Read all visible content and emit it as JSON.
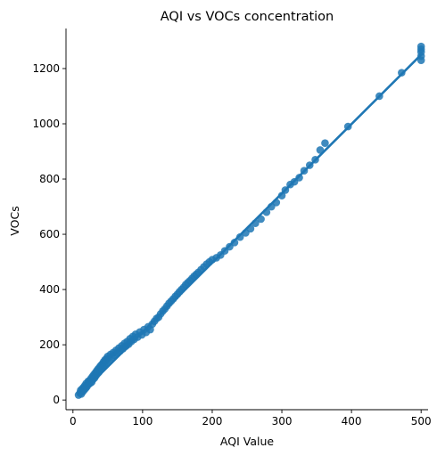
{
  "chart_data": {
    "type": "scatter",
    "title": "AQI vs VOCs concentration",
    "xlabel": "AQI Value",
    "ylabel": "VOCs",
    "xlim": [
      -10,
      510
    ],
    "ylim": [
      -35,
      1345
    ],
    "xticks": [
      0,
      100,
      200,
      300,
      400,
      500
    ],
    "yticks": [
      0,
      200,
      400,
      600,
      800,
      1000,
      1200
    ],
    "grid": false,
    "legend": "none",
    "marker_color": "#1f77b4",
    "regression_line": {
      "x": [
        8,
        500
      ],
      "y": [
        15,
        1250
      ]
    },
    "points": [
      [
        8,
        18
      ],
      [
        10,
        25
      ],
      [
        11,
        35
      ],
      [
        12,
        22
      ],
      [
        13,
        40
      ],
      [
        14,
        30
      ],
      [
        15,
        45
      ],
      [
        16,
        36
      ],
      [
        17,
        52
      ],
      [
        18,
        42
      ],
      [
        19,
        60
      ],
      [
        20,
        48
      ],
      [
        21,
        55
      ],
      [
        22,
        68
      ],
      [
        23,
        58
      ],
      [
        24,
        70
      ],
      [
        25,
        62
      ],
      [
        26,
        78
      ],
      [
        27,
        65
      ],
      [
        28,
        85
      ],
      [
        29,
        75
      ],
      [
        30,
        92
      ],
      [
        31,
        80
      ],
      [
        32,
        98
      ],
      [
        33,
        88
      ],
      [
        34,
        105
      ],
      [
        35,
        95
      ],
      [
        36,
        112
      ],
      [
        37,
        100
      ],
      [
        38,
        118
      ],
      [
        39,
        108
      ],
      [
        40,
        125
      ],
      [
        41,
        115
      ],
      [
        42,
        130
      ],
      [
        43,
        120
      ],
      [
        44,
        138
      ],
      [
        45,
        128
      ],
      [
        46,
        145
      ],
      [
        47,
        135
      ],
      [
        48,
        150
      ],
      [
        49,
        142
      ],
      [
        50,
        158
      ],
      [
        52,
        148
      ],
      [
        54,
        165
      ],
      [
        56,
        155
      ],
      [
        58,
        172
      ],
      [
        60,
        162
      ],
      [
        62,
        180
      ],
      [
        64,
        170
      ],
      [
        66,
        188
      ],
      [
        68,
        178
      ],
      [
        70,
        196
      ],
      [
        72,
        186
      ],
      [
        74,
        205
      ],
      [
        76,
        195
      ],
      [
        78,
        212
      ],
      [
        80,
        202
      ],
      [
        82,
        222
      ],
      [
        84,
        212
      ],
      [
        86,
        230
      ],
      [
        88,
        220
      ],
      [
        90,
        238
      ],
      [
        93,
        228
      ],
      [
        96,
        246
      ],
      [
        99,
        236
      ],
      [
        102,
        255
      ],
      [
        105,
        245
      ],
      [
        108,
        265
      ],
      [
        111,
        255
      ],
      [
        114,
        275
      ],
      [
        117,
        285
      ],
      [
        120,
        295
      ],
      [
        123,
        300
      ],
      [
        126,
        312
      ],
      [
        129,
        322
      ],
      [
        132,
        330
      ],
      [
        135,
        340
      ],
      [
        138,
        350
      ],
      [
        141,
        358
      ],
      [
        144,
        366
      ],
      [
        147,
        375
      ],
      [
        150,
        383
      ],
      [
        153,
        392
      ],
      [
        156,
        400
      ],
      [
        159,
        408
      ],
      [
        162,
        418
      ],
      [
        165,
        425
      ],
      [
        168,
        432
      ],
      [
        171,
        440
      ],
      [
        174,
        448
      ],
      [
        177,
        455
      ],
      [
        180,
        462
      ],
      [
        184,
        472
      ],
      [
        188,
        482
      ],
      [
        192,
        492
      ],
      [
        196,
        500
      ],
      [
        200,
        508
      ],
      [
        206,
        515
      ],
      [
        212,
        525
      ],
      [
        218,
        540
      ],
      [
        225,
        555
      ],
      [
        232,
        570
      ],
      [
        240,
        590
      ],
      [
        248,
        605
      ],
      [
        255,
        620
      ],
      [
        262,
        640
      ],
      [
        270,
        655
      ],
      [
        278,
        680
      ],
      [
        285,
        700
      ],
      [
        292,
        715
      ],
      [
        300,
        740
      ],
      [
        305,
        760
      ],
      [
        312,
        780
      ],
      [
        318,
        790
      ],
      [
        325,
        805
      ],
      [
        332,
        830
      ],
      [
        340,
        850
      ],
      [
        348,
        870
      ],
      [
        355,
        905
      ],
      [
        362,
        930
      ],
      [
        395,
        990
      ],
      [
        440,
        1100
      ],
      [
        472,
        1185
      ],
      [
        500,
        1230
      ],
      [
        500,
        1245
      ],
      [
        500,
        1260
      ],
      [
        500,
        1270
      ],
      [
        500,
        1280
      ]
    ]
  }
}
